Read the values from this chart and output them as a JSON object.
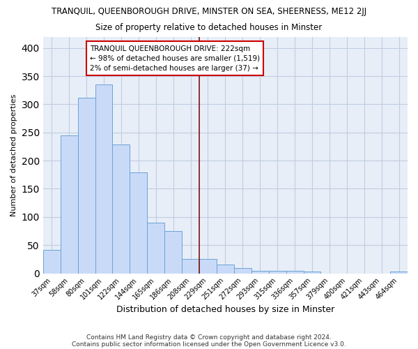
{
  "title1": "TRANQUIL, QUEENBOROUGH DRIVE, MINSTER ON SEA, SHEERNESS, ME12 2JJ",
  "title2": "Size of property relative to detached houses in Minster",
  "xlabel": "Distribution of detached houses by size in Minster",
  "ylabel": "Number of detached properties",
  "categories": [
    "37sqm",
    "58sqm",
    "80sqm",
    "101sqm",
    "122sqm",
    "144sqm",
    "165sqm",
    "186sqm",
    "208sqm",
    "229sqm",
    "251sqm",
    "272sqm",
    "293sqm",
    "315sqm",
    "336sqm",
    "357sqm",
    "379sqm",
    "400sqm",
    "421sqm",
    "443sqm",
    "464sqm"
  ],
  "values": [
    42,
    245,
    312,
    335,
    229,
    179,
    90,
    75,
    25,
    25,
    16,
    9,
    4,
    5,
    5,
    3,
    0,
    0,
    0,
    0,
    3
  ],
  "bar_color": "#c9daf8",
  "bar_edge_color": "#6aa3d5",
  "vline_x": 9,
  "vline_color": "#7b1010",
  "annotation_line0": "TRANQUIL QUEENBOROUGH DRIVE: 222sqm",
  "annotation_line1": "← 98% of detached houses are smaller (1,519)",
  "annotation_line2": "2% of semi-detached houses are larger (37) →",
  "annotation_box_edge": "#cc0000",
  "ylim": [
    0,
    420
  ],
  "yticks": [
    0,
    50,
    100,
    150,
    200,
    250,
    300,
    350,
    400
  ],
  "footer1": "Contains HM Land Registry data © Crown copyright and database right 2024.",
  "footer2": "Contains public sector information licensed under the Open Government Licence v3.0.",
  "bg_color": "#ffffff",
  "plot_bg_color": "#e8eef8",
  "grid_color": "#c0cce0"
}
